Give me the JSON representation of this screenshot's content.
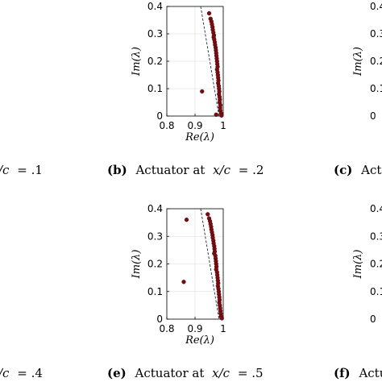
{
  "chart_data": [
    {
      "type": "scatter",
      "xlabel": "Re(λ)",
      "ylabel": "Im(λ)",
      "xlim": [
        0.8,
        1.0
      ],
      "ylim": [
        0,
        0.4
      ],
      "xticks": [
        "0.8",
        "0.9",
        "1"
      ],
      "yticks": [
        "0",
        "0.1",
        "0.2",
        "0.3",
        "0.4"
      ],
      "grid": true,
      "reference_line": [
        [
          0.92,
          0.4
        ],
        [
          0.985,
          0.0
        ]
      ],
      "caption": {
        "tag": "(b)",
        "text": "Actuator at",
        "var": "x/c",
        "eq": "= .2"
      },
      "points": [
        [
          0.95,
          0.375
        ],
        [
          0.955,
          0.355
        ],
        [
          0.958,
          0.345
        ],
        [
          0.96,
          0.335
        ],
        [
          0.962,
          0.325
        ],
        [
          0.963,
          0.315
        ],
        [
          0.965,
          0.305
        ],
        [
          0.967,
          0.295
        ],
        [
          0.966,
          0.288
        ],
        [
          0.968,
          0.28
        ],
        [
          0.97,
          0.27
        ],
        [
          0.971,
          0.26
        ],
        [
          0.973,
          0.25
        ],
        [
          0.974,
          0.24
        ],
        [
          0.975,
          0.23
        ],
        [
          0.976,
          0.22
        ],
        [
          0.977,
          0.21
        ],
        [
          0.978,
          0.2
        ],
        [
          0.979,
          0.19
        ],
        [
          0.98,
          0.18
        ],
        [
          0.978,
          0.17
        ],
        [
          0.98,
          0.16
        ],
        [
          0.981,
          0.15
        ],
        [
          0.982,
          0.14
        ],
        [
          0.983,
          0.13
        ],
        [
          0.982,
          0.12
        ],
        [
          0.984,
          0.11
        ],
        [
          0.985,
          0.1
        ],
        [
          0.986,
          0.09
        ],
        [
          0.985,
          0.08
        ],
        [
          0.987,
          0.07
        ],
        [
          0.988,
          0.06
        ],
        [
          0.987,
          0.05
        ],
        [
          0.99,
          0.04
        ],
        [
          0.989,
          0.03
        ],
        [
          0.99,
          0.02
        ],
        [
          0.992,
          0.01
        ],
        [
          0.975,
          0.005
        ],
        [
          0.994,
          0.002
        ],
        [
          0.925,
          0.09
        ]
      ]
    },
    {
      "type": "scatter",
      "xlabel": "Re(λ)",
      "ylabel": "Im(λ)",
      "xlim": [
        0.8,
        1.0
      ],
      "ylim": [
        0,
        0.4
      ],
      "xticks": [
        "0.8",
        "0.9",
        "1"
      ],
      "yticks": [
        "0",
        "0.1",
        "0.2",
        "0.3",
        "0.4"
      ],
      "grid": true,
      "reference_line": [
        [
          0.92,
          0.4
        ],
        [
          0.985,
          0.0
        ]
      ],
      "caption": {
        "tag": "(e)",
        "text": "Actuator at",
        "var": "x/c",
        "eq": "= .5"
      },
      "points": [
        [
          0.945,
          0.38
        ],
        [
          0.95,
          0.365
        ],
        [
          0.953,
          0.355
        ],
        [
          0.955,
          0.345
        ],
        [
          0.957,
          0.335
        ],
        [
          0.958,
          0.325
        ],
        [
          0.96,
          0.315
        ],
        [
          0.962,
          0.305
        ],
        [
          0.963,
          0.295
        ],
        [
          0.965,
          0.285
        ],
        [
          0.966,
          0.275
        ],
        [
          0.968,
          0.265
        ],
        [
          0.969,
          0.255
        ],
        [
          0.97,
          0.245
        ],
        [
          0.968,
          0.238
        ],
        [
          0.972,
          0.23
        ],
        [
          0.973,
          0.22
        ],
        [
          0.974,
          0.21
        ],
        [
          0.975,
          0.2
        ],
        [
          0.976,
          0.19
        ],
        [
          0.975,
          0.18
        ],
        [
          0.978,
          0.17
        ],
        [
          0.979,
          0.16
        ],
        [
          0.98,
          0.15
        ],
        [
          0.981,
          0.14
        ],
        [
          0.982,
          0.13
        ],
        [
          0.981,
          0.12
        ],
        [
          0.983,
          0.11
        ],
        [
          0.984,
          0.1
        ],
        [
          0.985,
          0.09
        ],
        [
          0.986,
          0.08
        ],
        [
          0.987,
          0.07
        ],
        [
          0.986,
          0.06
        ],
        [
          0.988,
          0.05
        ],
        [
          0.989,
          0.04
        ],
        [
          0.99,
          0.03
        ],
        [
          0.991,
          0.02
        ],
        [
          0.992,
          0.01
        ],
        [
          0.995,
          0.003
        ],
        [
          0.87,
          0.36
        ],
        [
          0.86,
          0.135
        ]
      ]
    }
  ],
  "captions": [
    {
      "tag": "",
      "var": "/c",
      "eq": "= .1"
    },
    {
      "tag": "(c)",
      "text": "Act"
    },
    {
      "tag": "",
      "var": "/c",
      "eq": "= .4"
    },
    {
      "tag": "(f)",
      "text": "Actu"
    }
  ],
  "neighbor_ticks": [
    "0.4",
    "0.3",
    "0.2",
    "0.1",
    "0"
  ],
  "neighbor_ylabel": "Im(λ)",
  "colors": {
    "point": "#7a0d12",
    "point_edge": "#4a0408",
    "line": "#1a2a3a",
    "grid": "#d9d9d9"
  }
}
